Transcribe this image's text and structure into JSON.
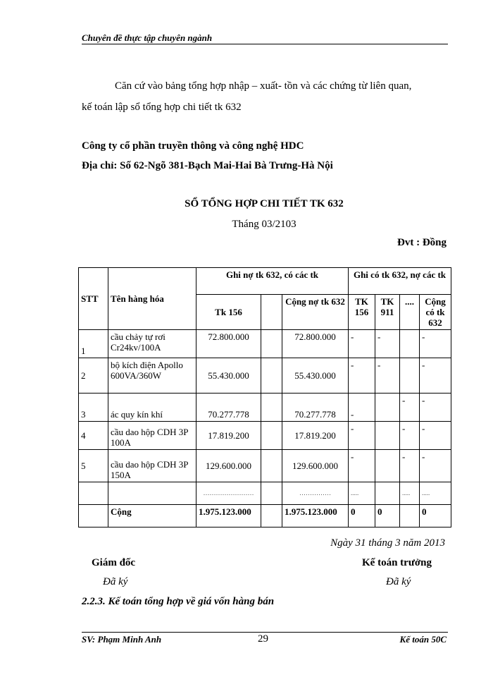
{
  "header": {
    "running_title": "Chuyên đề thực tập chuyên ngành"
  },
  "intro": {
    "line1": "Căn cứ vào bảng tổng hợp nhập – xuất- tồn và các chứng từ liên  quan,",
    "line2": "kế toán lập   sổ tổng hợp chi tiết tk 632"
  },
  "company": {
    "name": "Công ty cổ phần truyền thông và công nghệ HDC",
    "address": "Địa chỉ: Số 62-Ngõ 381-Bạch Mai-Hai Bà Trưng-Hà Nội"
  },
  "ledger": {
    "title": "SỔ TỔNG HỢP CHI TIẾT TK 632",
    "period": "Tháng 03/2103",
    "unit": "Đvt : Đồng"
  },
  "table": {
    "headers": {
      "stt": "STT",
      "name": "Tên hàng hóa",
      "debit_group": "Ghi nợ tk 632, có các tk",
      "credit_group": "Ghi có tk 632, nợ các tk",
      "tk156": "Tk 156",
      "blank": "",
      "debit_total": "Cộng nợ tk 632",
      "c_tk156": "TK 156",
      "c_tk911": "TK 911",
      "c_more": "....",
      "credit_total": "Cộng có tk 632"
    },
    "rows": [
      {
        "stt": "1",
        "name": "cầu chảy tự rơi Cr24kv/100A",
        "tk156": "72.800.000",
        "blank": "",
        "debit_total": "72.800.000",
        "c_tk156": "-",
        "c_tk911": "-",
        "c_more": "",
        "credit_total": "-"
      },
      {
        "stt": "2",
        "name": "bộ kích điện Apollo 600VA/360W",
        "tk156": "55.430.000",
        "blank": "",
        "debit_total": "55.430.000",
        "c_tk156": "-",
        "c_tk911": "-",
        "c_more": "",
        "credit_total": "-"
      },
      {
        "stt": "3",
        "name": "ác quy kín khí",
        "tk156": "70.277.778",
        "blank": "",
        "debit_total": "70.277.778",
        "c_tk156": "-",
        "c_tk911": "",
        "c_more": "-",
        "credit_total": "-"
      },
      {
        "stt": "4",
        "name": "cầu dao hộp CDH 3P 100A",
        "tk156": "17.819.200",
        "blank": "",
        "debit_total": "17.819.200",
        "c_tk156": "-",
        "c_tk911": "",
        "c_more": "-",
        "credit_total": "-"
      },
      {
        "stt": "5",
        "name": "cầu dao hộp CDH 3P 150A",
        "tk156": "129.600.000",
        "blank": "",
        "debit_total": "129.600.000",
        "c_tk156": "-",
        "c_tk911": "",
        "c_more": "-",
        "credit_total": "-"
      },
      {
        "stt": "",
        "name": "",
        "tk156": "……………………",
        "blank": "",
        "debit_total": "……………",
        "c_tk156": ".....",
        "c_tk911": "",
        "c_more": ".....",
        "credit_total": "....."
      }
    ],
    "total": {
      "stt": "",
      "name": "Cộng",
      "tk156": "1.975.123.000",
      "blank": "",
      "debit_total": "1.975.123.000",
      "c_tk156": "0",
      "c_tk911": "0",
      "c_more": "",
      "credit_total": "0"
    }
  },
  "signoff": {
    "date": "Ngày 31 tháng 3 năm 2013",
    "director": "Giám đốc",
    "director_sig": "Đã ký",
    "accountant": "Kế toán trưởng",
    "accountant_sig": "Đã ký"
  },
  "section": {
    "heading": "2.2.3. Kế toán tổng hợp về giá vốn hàng bán"
  },
  "footer": {
    "student": "SV: Phạm Minh Anh",
    "page": "29",
    "class": "Kế toán 50C"
  }
}
